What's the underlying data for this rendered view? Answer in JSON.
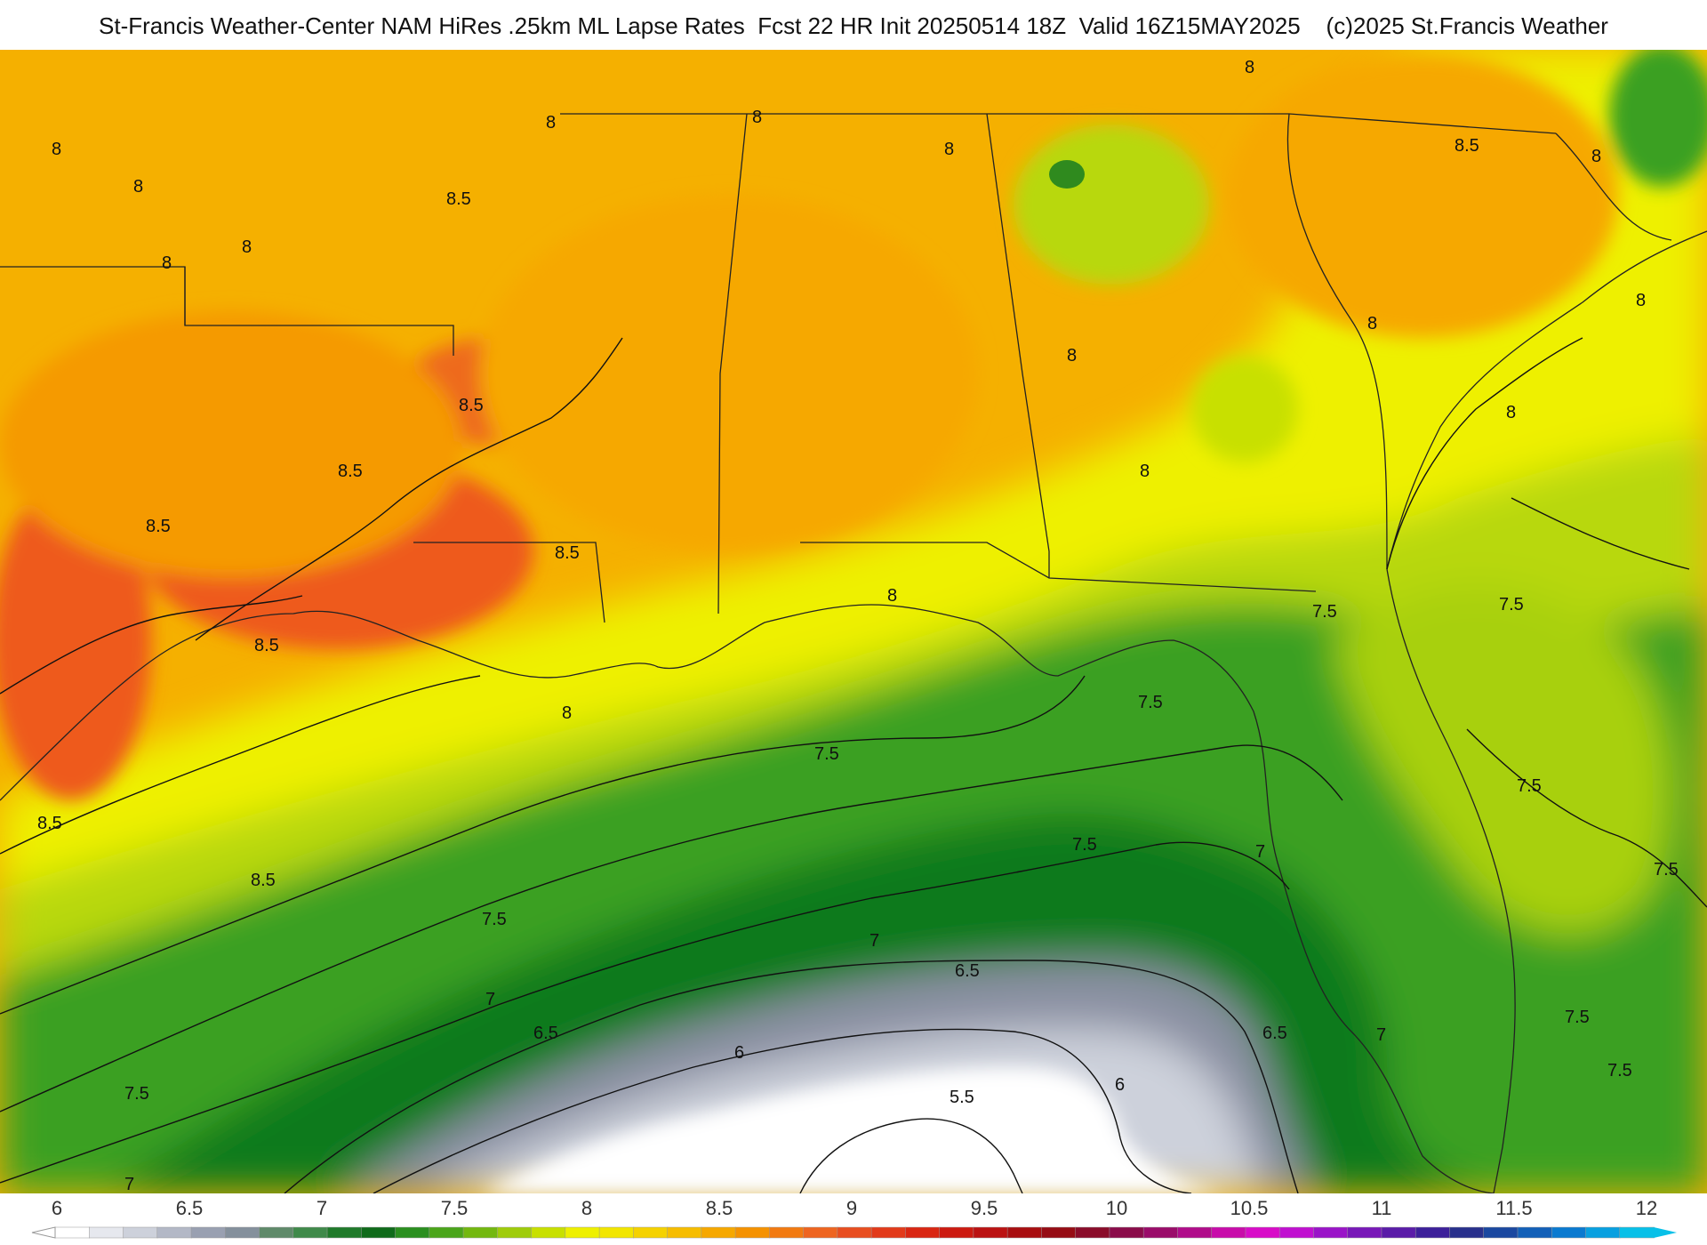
{
  "title": "St-Francis Weather-Center NAM HiRes .25km ML Lapse Rates  Fcst 22 HR Init 20250514 18Z  Valid 16Z15MAY2025    (c)2025 St.Francis Weather",
  "colorbar": {
    "ticks": [
      "6",
      "6.5",
      "7",
      "7.5",
      "8",
      "8.5",
      "9",
      "9.5",
      "10",
      "10.5",
      "11",
      "11.5",
      "12"
    ],
    "colors": [
      "#ffffff",
      "#e6e8ee",
      "#cdd1db",
      "#b3b8c6",
      "#99a0b1",
      "#84909c",
      "#5f8a6a",
      "#3f8a4a",
      "#1f7a2a",
      "#0f6b1a",
      "#2a8f1f",
      "#4aa51a",
      "#73b80f",
      "#9fcc0a",
      "#c8e000",
      "#eef000",
      "#f2e600",
      "#f5d200",
      "#f6bd00",
      "#f6a800",
      "#f59200",
      "#f27a10",
      "#ee6520",
      "#e84e20",
      "#e23a1a",
      "#d92612",
      "#cc1a10",
      "#bb1212",
      "#a80e10",
      "#960c14",
      "#8a0c2a",
      "#8a0c4a",
      "#9a0c6a",
      "#b00c8a",
      "#c80caa",
      "#d80cc8",
      "#c010d0",
      "#9a14c8",
      "#7818b8",
      "#5a1ca8",
      "#3c209a",
      "#28308c",
      "#1a48a0",
      "#1260b8",
      "#0a7ad0",
      "#08a0e0",
      "#08c0e8"
    ]
  },
  "contour_labels": [
    "8",
    "8",
    "8",
    "8",
    "8",
    "8",
    "8",
    "8",
    "8",
    "8",
    "8",
    "8",
    "8",
    "8",
    "8",
    "8",
    "8.5",
    "8.5",
    "8.5",
    "8.5",
    "8.5",
    "8.5",
    "8.5",
    "8.5",
    "8.5",
    "7.5",
    "7.5",
    "7.5",
    "7.5",
    "7.5",
    "7.5",
    "7.5",
    "7.5",
    "7.5",
    "7.5",
    "7.5",
    "7",
    "7",
    "7",
    "7",
    "7",
    "6.5",
    "6.5",
    "6.5",
    "6",
    "6",
    "5.5"
  ],
  "legend_colors": {
    "orange": "#f59a00",
    "red_orange": "#ee5a1e",
    "yellow": "#f0f000",
    "lime": "#c8e000",
    "green": "#3aa020",
    "dark_green": "#0f7a1f",
    "gray": "#8a90a2",
    "white": "#ffffff"
  }
}
